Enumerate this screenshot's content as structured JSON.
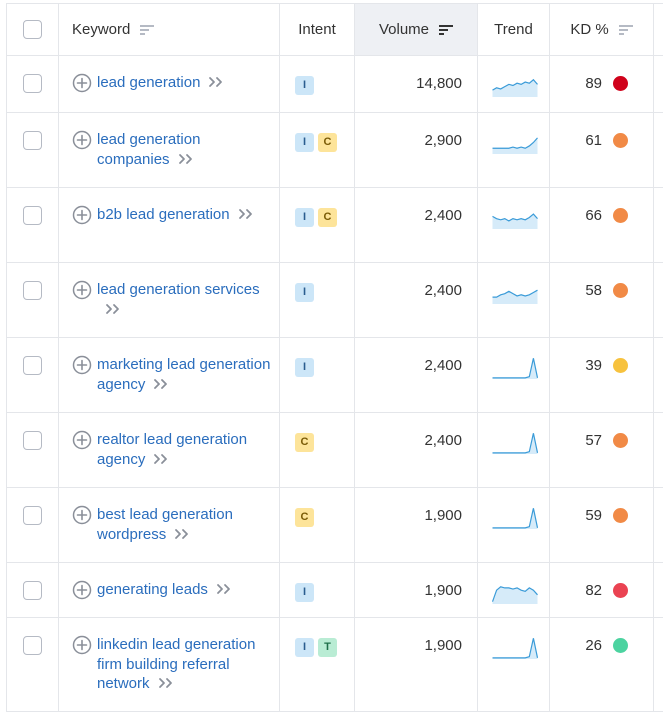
{
  "header": {
    "keyword": "Keyword",
    "intent": "Intent",
    "volume": "Volume",
    "trend": "Trend",
    "kd": "KD %"
  },
  "colors": {
    "link": "#2a6dbd",
    "kd_red_dark": "#d0021b",
    "kd_red": "#ea4352",
    "kd_orange": "#f18a46",
    "kd_yellow": "#f7c23e",
    "kd_green": "#4cd3a0",
    "spark_line": "#3a9bd8",
    "spark_fill": "#d6ebf9"
  },
  "rows": [
    {
      "keyword": "lead generation",
      "intents": [
        "I"
      ],
      "volume": "14,800",
      "kd": "89",
      "kd_color": "#d0021b",
      "trend": [
        0.3,
        0.4,
        0.35,
        0.45,
        0.55,
        0.5,
        0.6,
        0.55,
        0.65,
        0.6,
        0.75,
        0.55
      ]
    },
    {
      "keyword": "lead generation companies",
      "intents": [
        "I",
        "C"
      ],
      "volume": "2,900",
      "kd": "61",
      "kd_color": "#f18a46",
      "trend": [
        0.25,
        0.25,
        0.25,
        0.25,
        0.25,
        0.3,
        0.25,
        0.3,
        0.25,
        0.35,
        0.5,
        0.7
      ]
    },
    {
      "keyword": "b2b lead generation",
      "intents": [
        "I",
        "C"
      ],
      "volume": "2,400",
      "kd": "66",
      "kd_color": "#f18a46",
      "trend": [
        0.55,
        0.45,
        0.4,
        0.45,
        0.35,
        0.45,
        0.4,
        0.45,
        0.4,
        0.5,
        0.65,
        0.45
      ]
    },
    {
      "keyword": "lead generation services",
      "intents": [
        "I"
      ],
      "volume": "2,400",
      "kd": "58",
      "kd_color": "#f18a46",
      "trend": [
        0.3,
        0.3,
        0.4,
        0.45,
        0.55,
        0.45,
        0.35,
        0.4,
        0.35,
        0.4,
        0.5,
        0.6
      ]
    },
    {
      "keyword": "marketing lead generation agency",
      "intents": [
        "I"
      ],
      "volume": "2,400",
      "kd": "39",
      "kd_color": "#f7c23e",
      "trend": [
        0.05,
        0.05,
        0.05,
        0.05,
        0.05,
        0.05,
        0.05,
        0.05,
        0.05,
        0.1,
        0.9,
        0.05
      ]
    },
    {
      "keyword": "realtor lead generation agency",
      "intents": [
        "C"
      ],
      "volume": "2,400",
      "kd": "57",
      "kd_color": "#f18a46",
      "trend": [
        0.05,
        0.05,
        0.05,
        0.05,
        0.05,
        0.05,
        0.05,
        0.05,
        0.05,
        0.1,
        0.9,
        0.05
      ]
    },
    {
      "keyword": "best lead generation wordpress",
      "intents": [
        "C"
      ],
      "volume": "1,900",
      "kd": "59",
      "kd_color": "#f18a46",
      "trend": [
        0.05,
        0.05,
        0.05,
        0.05,
        0.05,
        0.05,
        0.05,
        0.05,
        0.05,
        0.1,
        0.9,
        0.05
      ]
    },
    {
      "keyword": "generating leads",
      "intents": [
        "I"
      ],
      "volume": "1,900",
      "kd": "82",
      "kd_color": "#ea4352",
      "trend": [
        0.1,
        0.6,
        0.75,
        0.7,
        0.7,
        0.65,
        0.7,
        0.6,
        0.55,
        0.7,
        0.6,
        0.4
      ]
    },
    {
      "keyword": "linkedin lead generation firm building referral network",
      "intents": [
        "I",
        "T"
      ],
      "volume": "1,900",
      "kd": "26",
      "kd_color": "#4cd3a0",
      "trend": [
        0.05,
        0.05,
        0.05,
        0.05,
        0.05,
        0.05,
        0.05,
        0.05,
        0.05,
        0.1,
        0.9,
        0.05
      ]
    }
  ]
}
